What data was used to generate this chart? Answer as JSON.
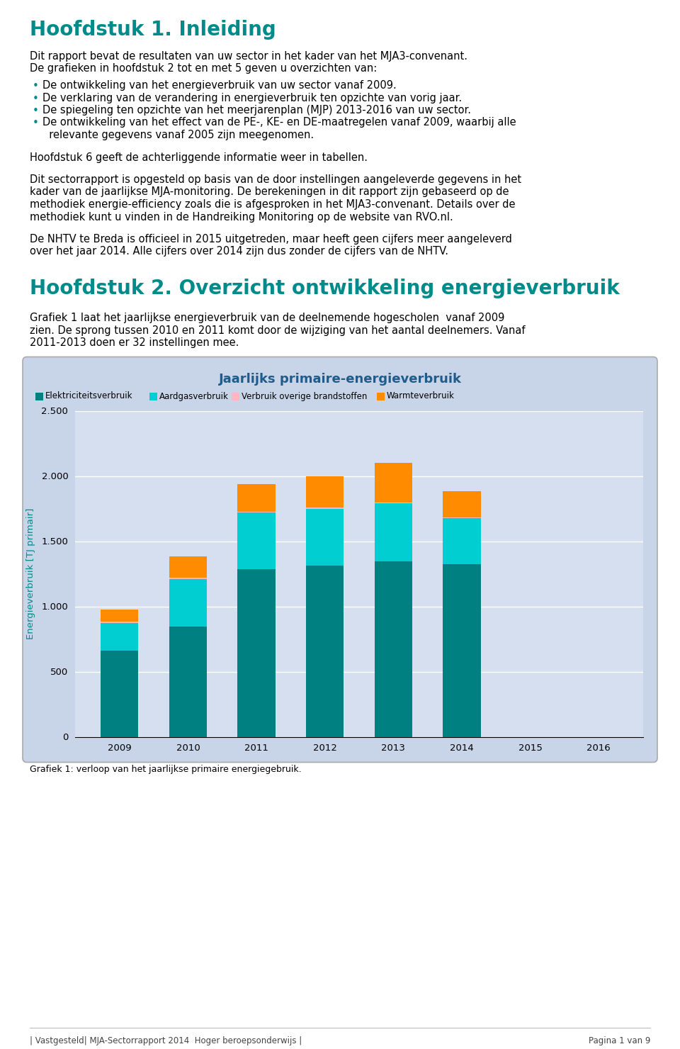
{
  "title1": "Hoofdstuk 1. Inleiding",
  "title2": "Hoofdstuk 2. Overzicht ontwikkeling energieverbruik",
  "heading_color": "#008B8B",
  "text_color": "#000000",
  "body_font_size": 10.5,
  "para1_line1": "Dit rapport bevat de resultaten van uw sector in het kader van het MJA3-convenant.",
  "para1_line2": "De grafieken in hoofdstuk 2 tot en met 5 geven u overzichten van:",
  "bullets": [
    "De ontwikkeling van het energieverbruik van uw sector vanaf 2009.",
    "De verklaring van de verandering in energieverbruik ten opzichte van vorig jaar.",
    "De spiegeling ten opzichte van het meerjarenplan (MJP) 2013-2016 van uw sector.",
    "De ontwikkeling van het effect van de PE-, KE- en DE-maatregelen vanaf 2009, waarbij alle"
  ],
  "bullet4_cont": "  relevante gegevens vanaf 2005 zijn meegenomen.",
  "para2": "Hoofdstuk 6 geeft de achterliggende informatie weer in tabellen.",
  "para3_lines": [
    "Dit sectorrapport is opgesteld op basis van de door instellingen aangeleverde gegevens in het",
    "kader van de jaarlijkse MJA-monitoring. De berekeningen in dit rapport zijn gebaseerd op de",
    "methodiek energie-efficiency zoals die is afgesproken in het MJA3-convenant. Details over de",
    "methodiek kunt u vinden in de Handreiking Monitoring op de website van RVO.nl."
  ],
  "para4_lines": [
    "De NHTV te Breda is officieel in 2015 uitgetreden, maar heeft geen cijfers meer aangeleverd",
    "over het jaar 2014. Alle cijfers over 2014 zijn dus zonder de cijfers van de NHTV."
  ],
  "ch2_para_lines": [
    "Grafiek 1 laat het jaarlijkse energieverbruik van de deelnemende hogescholen  vanaf 2009",
    "zien. De sprong tussen 2010 en 2011 komt door de wijziging van het aantal deelnemers. Vanaf",
    "2011-2013 doen er 32 instellingen mee."
  ],
  "chart_title": "Jaarlijks primaire-energieverbruik",
  "chart_title_color": "#1F5C8B",
  "chart_bg_color": "#C8D4E8",
  "chart_plot_bg": "#D6DFEF",
  "ylabel": "Energieverbruik [TJ primair]",
  "ylabel_color": "#008B8B",
  "xlabel_labels": [
    "2009",
    "2010",
    "2011",
    "2012",
    "2013",
    "2014",
    "2015",
    "2016"
  ],
  "yticks": [
    0,
    500,
    1000,
    1500,
    2000,
    2500
  ],
  "legend_labels": [
    "Elektriciteitsverbruik",
    "Aardgasverbruik",
    "Verbruik overige brandstoffen",
    "Warmteverbruik"
  ],
  "legend_colors": [
    "#008080",
    "#00CED1",
    "#FFB6C1",
    "#FF8C00"
  ],
  "bar_width": 0.55,
  "elektriciteit": [
    660,
    845,
    1285,
    1315,
    1345,
    1325,
    0,
    0
  ],
  "aardgas": [
    215,
    365,
    435,
    435,
    445,
    350,
    0,
    0
  ],
  "overige": [
    8,
    8,
    8,
    8,
    8,
    8,
    0,
    0
  ],
  "warmte": [
    90,
    165,
    210,
    240,
    305,
    200,
    0,
    0
  ],
  "footer_left": "| Vastgesteld| MJA-Sectorrapport 2014  Hoger beroepsonderwijs |",
  "footer_right": "Pagina 1 van 9",
  "footer_color": "#444444",
  "grafiek_caption": "Grafiek 1: verloop van het jaarlijkse primaire energiegebruik."
}
